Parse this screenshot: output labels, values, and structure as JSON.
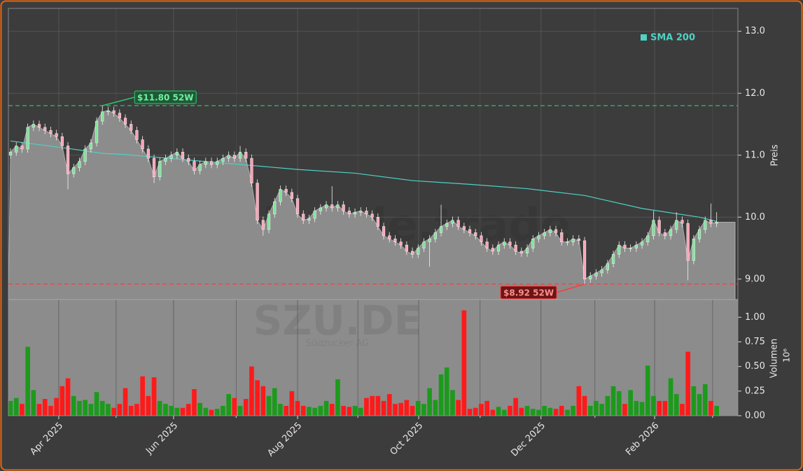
{
  "chart_data": {
    "type": "candlestick",
    "x": [
      0,
      1,
      2,
      3,
      4,
      5,
      6,
      7,
      8,
      9,
      10,
      11,
      12,
      13,
      14,
      15,
      16,
      17,
      18,
      19,
      20,
      21,
      22,
      23,
      24,
      25,
      26,
      27,
      28,
      29,
      30,
      31,
      32,
      33,
      34,
      35,
      36,
      37,
      38,
      39,
      40,
      41,
      42,
      43,
      44,
      45,
      46,
      47,
      48,
      49,
      50,
      51,
      52,
      53,
      54,
      55,
      56,
      57,
      58,
      59,
      60,
      61,
      62,
      63,
      64,
      65,
      66,
      67,
      68,
      69,
      70,
      71,
      72,
      73,
      74,
      75,
      76,
      77,
      78,
      79,
      80,
      81,
      82,
      83,
      84,
      85,
      86,
      87,
      88,
      89,
      90,
      91,
      92,
      93,
      94,
      95,
      96,
      97,
      98,
      99,
      100,
      101,
      102,
      103,
      104,
      105,
      106,
      107,
      108,
      109,
      110,
      111,
      112,
      113,
      114,
      115,
      116,
      117,
      118,
      119,
      120,
      121,
      122,
      123
    ],
    "open": [
      11.0,
      11.05,
      11.15,
      11.1,
      11.45,
      11.5,
      11.45,
      11.4,
      11.35,
      11.3,
      11.15,
      10.7,
      10.8,
      10.9,
      11.1,
      11.2,
      11.55,
      11.7,
      11.72,
      11.68,
      11.6,
      11.5,
      11.4,
      11.25,
      11.1,
      10.95,
      10.65,
      10.9,
      10.95,
      11.0,
      11.05,
      10.95,
      10.9,
      10.75,
      10.85,
      10.9,
      10.85,
      10.9,
      10.95,
      11.0,
      10.95,
      11.05,
      10.95,
      10.55,
      9.95,
      9.8,
      10.05,
      10.25,
      10.45,
      10.4,
      10.3,
      10.05,
      9.95,
      9.98,
      10.1,
      10.15,
      10.2,
      10.15,
      10.2,
      10.1,
      10.05,
      10.08,
      10.1,
      10.05,
      10.0,
      9.85,
      9.7,
      9.65,
      9.6,
      9.55,
      9.45,
      9.4,
      9.5,
      9.6,
      9.65,
      9.75,
      9.85,
      9.9,
      9.95,
      9.85,
      9.8,
      9.75,
      9.7,
      9.6,
      9.5,
      9.45,
      9.55,
      9.6,
      9.55,
      9.45,
      9.42,
      9.5,
      9.65,
      9.7,
      9.75,
      9.8,
      9.75,
      9.6,
      9.6,
      9.65,
      9.62,
      9.0,
      9.05,
      9.1,
      9.15,
      9.25,
      9.4,
      9.55,
      9.5,
      9.5,
      9.55,
      9.6,
      9.7,
      9.95,
      9.75,
      9.7,
      9.8,
      9.95,
      9.9,
      9.3,
      9.65,
      9.8,
      9.95,
      9.9
    ],
    "high": [
      11.11,
      11.21,
      11.21,
      11.51,
      11.56,
      11.56,
      11.51,
      11.46,
      11.41,
      11.36,
      11.21,
      10.86,
      10.96,
      11.16,
      11.26,
      11.61,
      11.8,
      11.78,
      11.78,
      11.74,
      11.66,
      11.56,
      11.46,
      11.31,
      11.16,
      11.01,
      10.96,
      11.01,
      11.06,
      11.11,
      11.11,
      11.01,
      10.96,
      10.91,
      10.96,
      10.96,
      10.96,
      11.01,
      11.06,
      11.06,
      11.15,
      11.11,
      11.01,
      10.61,
      10.01,
      10.11,
      10.31,
      10.51,
      10.51,
      10.46,
      10.36,
      10.11,
      10.04,
      10.16,
      10.21,
      10.26,
      10.5,
      10.26,
      10.26,
      10.16,
      10.14,
      10.16,
      10.16,
      10.11,
      10.06,
      9.91,
      9.76,
      9.71,
      9.66,
      9.61,
      9.51,
      9.56,
      9.66,
      9.71,
      9.81,
      10.2,
      9.96,
      10.01,
      10.01,
      9.91,
      9.86,
      9.81,
      9.76,
      9.66,
      9.56,
      9.61,
      9.66,
      9.66,
      9.61,
      9.51,
      9.56,
      9.71,
      9.76,
      9.81,
      9.86,
      9.86,
      9.81,
      9.66,
      9.71,
      9.71,
      9.68,
      9.11,
      9.16,
      9.21,
      9.31,
      9.46,
      9.61,
      9.61,
      9.56,
      9.61,
      9.66,
      9.76,
      10.1,
      10.01,
      9.81,
      9.86,
      10.08,
      10.01,
      9.96,
      9.71,
      9.86,
      10.01,
      10.22,
      10.08
    ],
    "low": [
      10.94,
      10.99,
      11.04,
      11.04,
      11.39,
      11.39,
      11.34,
      11.29,
      11.24,
      11.09,
      10.45,
      10.64,
      10.74,
      10.84,
      11.04,
      11.14,
      11.49,
      11.64,
      11.62,
      11.54,
      11.44,
      11.34,
      11.19,
      11.04,
      10.89,
      10.55,
      10.59,
      10.84,
      10.89,
      10.94,
      10.89,
      10.84,
      10.69,
      10.69,
      10.79,
      10.79,
      10.79,
      10.84,
      10.89,
      10.89,
      10.89,
      10.89,
      10.49,
      9.89,
      9.7,
      9.74,
      9.99,
      10.19,
      10.34,
      10.24,
      9.99,
      9.89,
      9.89,
      9.92,
      10.04,
      10.09,
      10.09,
      10.09,
      10.04,
      9.99,
      9.99,
      10.02,
      9.99,
      9.94,
      9.79,
      9.64,
      9.59,
      9.54,
      9.49,
      9.39,
      9.34,
      9.34,
      9.44,
      9.2,
      9.59,
      9.69,
      9.79,
      9.84,
      9.79,
      9.74,
      9.69,
      9.64,
      9.54,
      9.44,
      9.39,
      9.39,
      9.49,
      9.49,
      9.39,
      9.36,
      9.36,
      9.44,
      9.59,
      9.64,
      9.69,
      9.69,
      9.54,
      9.54,
      9.54,
      9.56,
      8.92,
      8.94,
      8.99,
      9.04,
      9.09,
      9.19,
      9.34,
      9.44,
      9.44,
      9.44,
      9.49,
      9.54,
      9.64,
      9.69,
      9.64,
      9.64,
      9.74,
      9.84,
      8.98,
      9.24,
      9.59,
      9.74,
      9.84,
      9.84
    ],
    "close": [
      11.05,
      11.15,
      11.1,
      11.45,
      11.5,
      11.45,
      11.4,
      11.35,
      11.3,
      11.15,
      10.7,
      10.8,
      10.9,
      11.1,
      11.2,
      11.55,
      11.7,
      11.72,
      11.68,
      11.6,
      11.5,
      11.4,
      11.25,
      11.1,
      10.95,
      10.65,
      10.9,
      10.95,
      11.0,
      11.05,
      10.95,
      10.9,
      10.75,
      10.85,
      10.9,
      10.85,
      10.9,
      10.95,
      11.0,
      10.95,
      11.05,
      10.95,
      10.55,
      9.95,
      9.8,
      10.05,
      10.25,
      10.45,
      10.4,
      10.3,
      10.05,
      9.95,
      9.98,
      10.1,
      10.15,
      10.2,
      10.15,
      10.2,
      10.1,
      10.05,
      10.08,
      10.1,
      10.05,
      10.0,
      9.85,
      9.7,
      9.65,
      9.6,
      9.55,
      9.45,
      9.4,
      9.5,
      9.6,
      9.65,
      9.75,
      9.85,
      9.9,
      9.95,
      9.85,
      9.8,
      9.75,
      9.7,
      9.6,
      9.5,
      9.45,
      9.55,
      9.6,
      9.55,
      9.45,
      9.42,
      9.5,
      9.65,
      9.7,
      9.75,
      9.8,
      9.75,
      9.6,
      9.6,
      9.65,
      9.62,
      9.0,
      9.05,
      9.1,
      9.15,
      9.25,
      9.4,
      9.55,
      9.5,
      9.5,
      9.55,
      9.6,
      9.7,
      9.95,
      9.75,
      9.7,
      9.8,
      9.95,
      9.9,
      9.3,
      9.65,
      9.8,
      9.95,
      9.9,
      9.92
    ],
    "colors": {
      "up": "#7fe39a",
      "down": "#ffa3b8",
      "area": "#8c8c8c",
      "volume_up": "#1c9a1c",
      "volume_down": "#ff1a1a"
    },
    "xlim": [
      -0.37,
      126.7
    ],
    "xticks": [
      {
        "value": 8.4,
        "label": "Apr 2025"
      },
      {
        "value": 28.4,
        "label": "Jun 2025"
      },
      {
        "value": 50,
        "label": "Aug 2025"
      },
      {
        "value": 71.1,
        "label": "Oct 2025"
      },
      {
        "value": 92.4,
        "label": "Dec 2025"
      },
      {
        "value": 112.2,
        "label": "Feb 2026"
      }
    ],
    "xminorticks": [
      18.4,
      39.3,
      60.5,
      81.8,
      101.8,
      122.3
    ],
    "ylabel": "Preis",
    "ylim": [
      8.67,
      13.37
    ],
    "yticks": [
      {
        "value": 9,
        "label": "9.00"
      },
      {
        "value": 10,
        "label": "10.0"
      },
      {
        "value": 11,
        "label": "11.0"
      },
      {
        "value": 12,
        "label": "12.0"
      },
      {
        "value": 13,
        "label": "13.0"
      }
    ],
    "grid": true,
    "sma": {
      "name": "SMA 200",
      "color": "#4fd1c5",
      "x": [
        0,
        10,
        16,
        20,
        30,
        40,
        50,
        60,
        70,
        80,
        90,
        100,
        110,
        120,
        123
      ],
      "values": [
        11.23,
        11.11,
        11.03,
        11.01,
        10.93,
        10.85,
        10.77,
        10.71,
        10.59,
        10.53,
        10.46,
        10.35,
        10.14,
        10.0,
        9.93
      ]
    },
    "legend": "upper right",
    "hlines": [
      {
        "value": 11.8,
        "label": "$11.80 52W",
        "color": "#2ecc71",
        "x": 16
      },
      {
        "value": 8.92,
        "label": "$8.92 52W",
        "color": "#ff3b3b",
        "x": 100
      }
    ],
    "volume": {
      "label": "Volumen",
      "offset_label": "10⁶",
      "ylim": [
        0,
        1.18
      ],
      "yticks": [
        {
          "value": 0,
          "label": "0.00"
        },
        0.25,
        {
          "value": 0.5,
          "label": "0.50"
        },
        0.75,
        {
          "value": 1,
          "label": "1.00"
        }
      ],
      "values": [
        0.15,
        0.18,
        0.12,
        0.7,
        0.26,
        0.12,
        0.17,
        0.1,
        0.18,
        0.3,
        0.38,
        0.2,
        0.15,
        0.16,
        0.12,
        0.24,
        0.15,
        0.12,
        0.08,
        0.12,
        0.28,
        0.1,
        0.12,
        0.4,
        0.2,
        0.39,
        0.15,
        0.12,
        0.1,
        0.08,
        0.08,
        0.12,
        0.27,
        0.13,
        0.08,
        0.06,
        0.07,
        0.1,
        0.22,
        0.18,
        0.1,
        0.17,
        0.5,
        0.36,
        0.3,
        0.2,
        0.28,
        0.12,
        0.1,
        0.25,
        0.15,
        0.1,
        0.09,
        0.08,
        0.1,
        0.15,
        0.12,
        0.37,
        0.1,
        0.09,
        0.1,
        0.08,
        0.18,
        0.2,
        0.2,
        0.15,
        0.22,
        0.12,
        0.13,
        0.16,
        0.1,
        0.15,
        0.12,
        0.28,
        0.16,
        0.42,
        0.49,
        0.26,
        0.16,
        1.07,
        0.07,
        0.08,
        0.12,
        0.15,
        0.06,
        0.09,
        0.06,
        0.1,
        0.18,
        0.08,
        0.1,
        0.07,
        0.06,
        0.1,
        0.08,
        0.07,
        0.1,
        0.06,
        0.1,
        0.3,
        0.2,
        0.1,
        0.15,
        0.12,
        0.2,
        0.3,
        0.25,
        0.12,
        0.26,
        0.15,
        0.14,
        0.51,
        0.2,
        0.15,
        0.15,
        0.38,
        0.22,
        0.12,
        0.65,
        0.3,
        0.22,
        0.32,
        0.15,
        0.1
      ]
    },
    "watermarks": [
      "forexsignale.trade",
      "SZU.DE",
      "Südzucker AG"
    ]
  }
}
